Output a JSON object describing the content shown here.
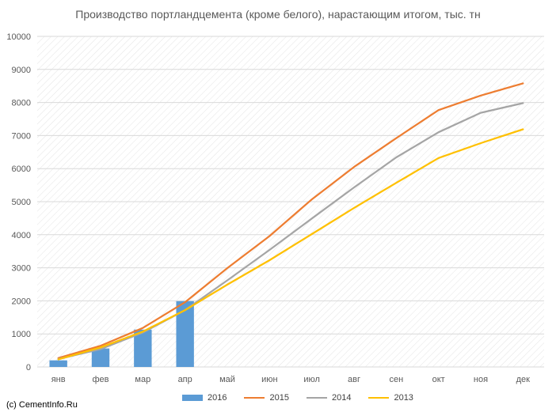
{
  "page": {
    "copyright": "(c) CementInfo.Ru"
  },
  "chart_data": {
    "type": "line",
    "title": "Производство портландцемента (кроме белого), нарастающим итогом, тыс. тн",
    "categories": [
      "янв",
      "фев",
      "мар",
      "апр",
      "май",
      "июн",
      "июл",
      "авг",
      "сен",
      "окт",
      "ноя",
      "дек"
    ],
    "ylim": [
      0,
      10000
    ],
    "yticks": [
      0,
      1000,
      2000,
      3000,
      4000,
      5000,
      6000,
      7000,
      8000,
      9000,
      10000
    ],
    "grid": true,
    "legend_position": "bottom",
    "series": [
      {
        "name": "2016",
        "kind": "bar",
        "color": "#5b9bd5",
        "values": [
          200,
          560,
          1130,
          1990,
          null,
          null,
          null,
          null,
          null,
          null,
          null,
          null
        ]
      },
      {
        "name": "2015",
        "kind": "line",
        "color": "#ed7d31",
        "values": [
          270,
          640,
          1180,
          1960,
          2990,
          3960,
          5070,
          6050,
          6920,
          7770,
          8210,
          8580
        ]
      },
      {
        "name": "2014",
        "kind": "line",
        "color": "#a5a5a5",
        "values": [
          240,
          540,
          1040,
          1720,
          2620,
          3540,
          4490,
          5430,
          6340,
          7100,
          7690,
          7980
        ]
      },
      {
        "name": "2013",
        "kind": "line",
        "color": "#ffc000",
        "values": [
          230,
          590,
          1070,
          1720,
          2490,
          3230,
          4020,
          4810,
          5570,
          6320,
          6770,
          7190
        ]
      }
    ]
  }
}
